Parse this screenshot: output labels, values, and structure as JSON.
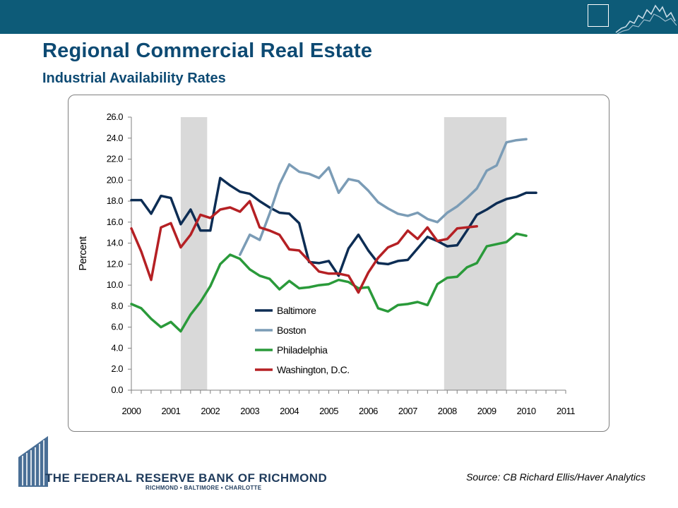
{
  "header": {
    "title": "Regional Commercial Real Estate",
    "subtitle": "Industrial Availability Rates"
  },
  "footer": {
    "source": "Source: CB Richard Ellis/Haver Analytics",
    "bank_name": "THE FEDERAL RESERVE BANK OF RICHMOND",
    "bank_cities": "RICHMOND • BALTIMORE • CHARLOTTE"
  },
  "colors": {
    "topbar": "#0d5b78",
    "title": "#0d4a73",
    "recession_shade": "#d9d9d9"
  },
  "chart_data": {
    "type": "line",
    "ylabel": "Percent",
    "xlabel": "",
    "xlim": [
      2000,
      2011
    ],
    "ylim": [
      0,
      26
    ],
    "y_ticks": [
      "0.0",
      "2.0",
      "4.0",
      "6.0",
      "8.0",
      "10.0",
      "12.0",
      "14.0",
      "16.0",
      "18.0",
      "20.0",
      "22.0",
      "24.0",
      "26.0"
    ],
    "x_ticks": [
      "2000",
      "2001",
      "2002",
      "2003",
      "2004",
      "2005",
      "2006",
      "2007",
      "2008",
      "2009",
      "2010",
      "2011"
    ],
    "x_step": 0.25,
    "recessions": [
      [
        2001.25,
        2001.92
      ],
      [
        2007.92,
        2009.5
      ]
    ],
    "legend": [
      "Baltimore",
      "Boston",
      "Philadelphia",
      "Washington, D.C."
    ],
    "series": [
      {
        "name": "Baltimore",
        "color": "#0d2d54",
        "start": 2000.0,
        "values": [
          18.1,
          18.1,
          16.8,
          18.5,
          18.3,
          15.8,
          17.2,
          15.2,
          15.2,
          20.2,
          19.5,
          18.9,
          18.7,
          18.0,
          17.4,
          16.9,
          16.8,
          15.9,
          12.2,
          12.1,
          12.3,
          10.9,
          13.5,
          14.8,
          13.3,
          12.1,
          12.0,
          12.3,
          12.4,
          13.5,
          14.6,
          14.2,
          13.7,
          13.8,
          15.2,
          16.7,
          17.2,
          17.8,
          18.2,
          18.4,
          18.8,
          18.8
        ]
      },
      {
        "name": "Boston",
        "color": "#7b9cb6",
        "start": 2002.75,
        "values": [
          12.9,
          14.8,
          14.3,
          16.8,
          19.6,
          21.5,
          20.8,
          20.6,
          20.2,
          21.2,
          18.8,
          20.1,
          19.9,
          19.0,
          17.9,
          17.3,
          16.8,
          16.6,
          16.9,
          16.3,
          16.0,
          16.9,
          17.5,
          18.3,
          19.2,
          20.9,
          21.4,
          23.6,
          23.8,
          23.9
        ]
      },
      {
        "name": "Philadelphia",
        "color": "#2a9a3a",
        "start": 2000.0,
        "values": [
          8.2,
          7.8,
          6.8,
          6.0,
          6.5,
          5.6,
          7.2,
          8.4,
          9.9,
          12.0,
          12.9,
          12.5,
          11.5,
          10.9,
          10.6,
          9.6,
          10.4,
          9.7,
          9.8,
          10.0,
          10.1,
          10.5,
          10.3,
          9.7,
          9.8,
          7.8,
          7.5,
          8.1,
          8.2,
          8.4,
          8.1,
          10.1,
          10.7,
          10.8,
          11.7,
          12.1,
          13.7,
          13.9,
          14.1,
          14.9,
          14.7
        ]
      },
      {
        "name": "Washington, D.C.",
        "color": "#b52024",
        "start": 2000.0,
        "values": [
          15.4,
          13.2,
          10.5,
          15.5,
          15.9,
          13.6,
          14.8,
          16.7,
          16.4,
          17.2,
          17.4,
          17.0,
          18.0,
          15.5,
          15.2,
          14.8,
          13.4,
          13.3,
          12.3,
          11.3,
          11.1,
          11.1,
          10.9,
          9.3,
          11.2,
          12.6,
          13.6,
          14.0,
          15.2,
          14.4,
          15.5,
          14.2,
          14.4,
          15.4,
          15.5,
          15.6
        ]
      }
    ]
  }
}
